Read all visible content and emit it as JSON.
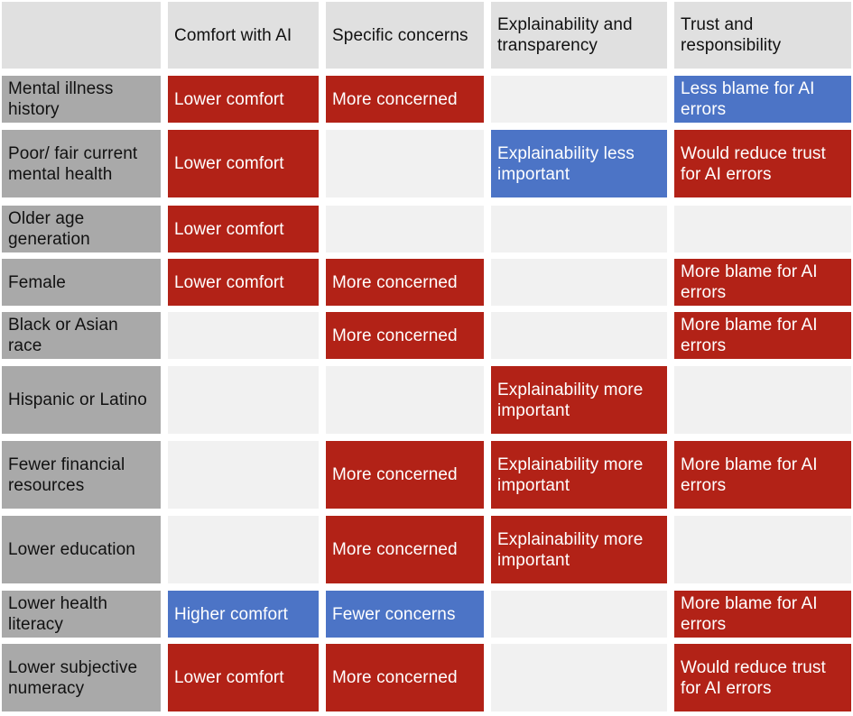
{
  "colors": {
    "increase": "#b22217",
    "decrease": "#4c74c6",
    "empty": "#f1f1f1",
    "header": "#e0e0e0",
    "row_header": "#a9a9a9"
  },
  "columns": [
    "Comfort with AI",
    "Specific concerns",
    "Explainability and transparency",
    "Trust and responsibility"
  ],
  "rows": [
    {
      "label": "Mental illness history",
      "cells": [
        {
          "text": "Lower comfort",
          "color": "red"
        },
        {
          "text": "More concerned",
          "color": "red"
        },
        {
          "text": "",
          "color": "empty"
        },
        {
          "text": "Less blame for AI errors",
          "color": "blue"
        }
      ]
    },
    {
      "label": "Poor/ fair current mental health",
      "cells": [
        {
          "text": "Lower comfort",
          "color": "red"
        },
        {
          "text": "",
          "color": "empty"
        },
        {
          "text": "Explainability less important",
          "color": "blue"
        },
        {
          "text": "Would reduce trust for AI errors",
          "color": "red"
        }
      ]
    },
    {
      "label": "Older age generation",
      "cells": [
        {
          "text": "Lower comfort",
          "color": "red"
        },
        {
          "text": "",
          "color": "empty"
        },
        {
          "text": "",
          "color": "empty"
        },
        {
          "text": "",
          "color": "empty"
        }
      ]
    },
    {
      "label": "Female",
      "cells": [
        {
          "text": "Lower comfort",
          "color": "red"
        },
        {
          "text": "More concerned",
          "color": "red"
        },
        {
          "text": "",
          "color": "empty"
        },
        {
          "text": "More blame for AI errors",
          "color": "red"
        }
      ]
    },
    {
      "label": "Black or Asian race",
      "cells": [
        {
          "text": "",
          "color": "empty"
        },
        {
          "text": "More concerned",
          "color": "red"
        },
        {
          "text": "",
          "color": "empty"
        },
        {
          "text": "More blame for AI errors",
          "color": "red"
        }
      ]
    },
    {
      "label": "Hispanic or Latino",
      "cells": [
        {
          "text": "",
          "color": "empty"
        },
        {
          "text": "",
          "color": "empty"
        },
        {
          "text": "Explainability more important",
          "color": "red"
        },
        {
          "text": "",
          "color": "empty"
        }
      ]
    },
    {
      "label": "Fewer financial resources",
      "cells": [
        {
          "text": "",
          "color": "empty"
        },
        {
          "text": "More concerned",
          "color": "red"
        },
        {
          "text": "Explainability more important",
          "color": "red"
        },
        {
          "text": "More blame for AI errors",
          "color": "red"
        }
      ]
    },
    {
      "label": "Lower education",
      "cells": [
        {
          "text": "",
          "color": "empty"
        },
        {
          "text": "More concerned",
          "color": "red"
        },
        {
          "text": "Explainability more important",
          "color": "red"
        },
        {
          "text": "",
          "color": "empty"
        }
      ]
    },
    {
      "label": "Lower health literacy",
      "cells": [
        {
          "text": "Higher comfort",
          "color": "blue"
        },
        {
          "text": "Fewer concerns",
          "color": "blue"
        },
        {
          "text": "",
          "color": "empty"
        },
        {
          "text": "More blame for AI errors",
          "color": "red"
        }
      ]
    },
    {
      "label": "Lower subjective numeracy",
      "cells": [
        {
          "text": "Lower comfort",
          "color": "red"
        },
        {
          "text": "More concerned",
          "color": "red"
        },
        {
          "text": "",
          "color": "empty"
        },
        {
          "text": "Would reduce trust for AI errors",
          "color": "red"
        }
      ]
    }
  ]
}
